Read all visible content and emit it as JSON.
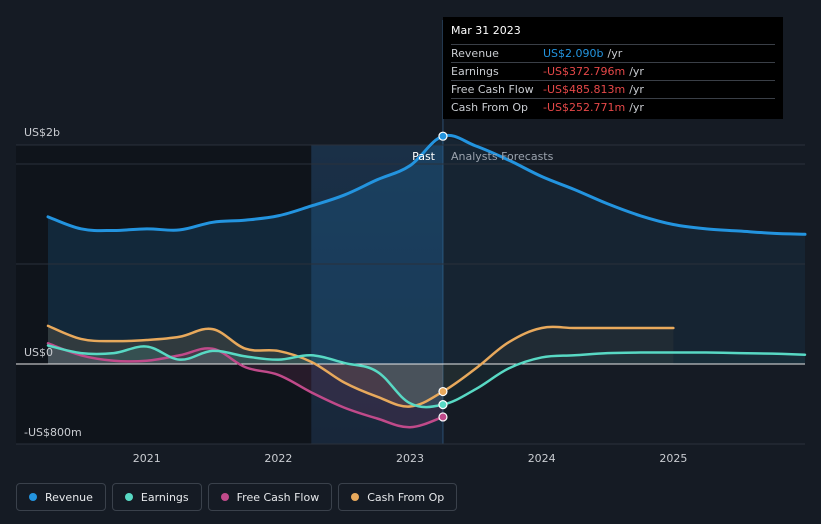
{
  "tooltip": {
    "date": "Mar 31 2023",
    "rows": [
      {
        "label": "Revenue",
        "value": "US$2.090b",
        "unit": "/yr",
        "color": "#2394df"
      },
      {
        "label": "Earnings",
        "value": "-US$372.796m",
        "unit": "/yr",
        "color": "#e64848"
      },
      {
        "label": "Free Cash Flow",
        "value": "-US$485.813m",
        "unit": "/yr",
        "color": "#e64848"
      },
      {
        "label": "Cash From Op",
        "value": "-US$252.771m",
        "unit": "/yr",
        "color": "#e64848"
      }
    ]
  },
  "markers": {
    "past": "Past",
    "forecast": "Analysts Forecasts"
  },
  "colors": {
    "background": "#151b24",
    "revenue": "#2394df",
    "earnings": "#58d9c4",
    "fcf": "#c04a8a",
    "cfo": "#e8a95c"
  },
  "legend": [
    {
      "label": "Revenue",
      "color": "#2394df"
    },
    {
      "label": "Earnings",
      "color": "#58d9c4"
    },
    {
      "label": "Free Cash Flow",
      "color": "#c04a8a"
    },
    {
      "label": "Cash From Op",
      "color": "#e8a95c"
    }
  ],
  "chart_data": {
    "type": "line",
    "title": "",
    "xlabel": "",
    "ylabel": "",
    "ylim": [
      -800,
      2000
    ],
    "xlim": [
      2020.25,
      2026.0
    ],
    "y_tick_labels": [
      {
        "value": 2000,
        "label": "US$2b"
      },
      {
        "value": 0,
        "label": "US$0"
      },
      {
        "value": -800,
        "label": "-US$800m"
      }
    ],
    "x_ticks": [
      {
        "value": 2021,
        "label": "2021"
      },
      {
        "value": 2022,
        "label": "2022"
      },
      {
        "value": 2023,
        "label": "2023"
      },
      {
        "value": 2024,
        "label": "2024"
      },
      {
        "value": 2025,
        "label": "2025"
      }
    ],
    "past_boundary": 2023.25,
    "highlight_start": 2022.25,
    "series": [
      {
        "name": "Revenue",
        "x": [
          2020.25,
          2020.5,
          2020.75,
          2021.0,
          2021.25,
          2021.5,
          2021.75,
          2022.0,
          2022.25,
          2022.5,
          2022.75,
          2023.0,
          2023.25,
          2023.5,
          2023.75,
          2024.0,
          2024.25,
          2024.5,
          2024.75,
          2025.0,
          2025.25,
          2025.5,
          2025.75,
          2026.0
        ],
        "values": [
          1350,
          1240,
          1225,
          1240,
          1230,
          1300,
          1320,
          1360,
          1450,
          1550,
          1690,
          1820,
          2090,
          2000,
          1870,
          1720,
          1600,
          1470,
          1360,
          1280,
          1240,
          1220,
          1200,
          1190
        ]
      },
      {
        "name": "Earnings",
        "x": [
          2020.25,
          2020.5,
          2020.75,
          2021.0,
          2021.25,
          2021.5,
          2021.75,
          2022.0,
          2022.25,
          2022.5,
          2022.75,
          2023.0,
          2023.25,
          2023.5,
          2023.75,
          2024.0,
          2024.25,
          2024.5,
          2024.75,
          2025.0,
          2025.25,
          2025.5,
          2025.75,
          2026.0
        ],
        "values": [
          170,
          100,
          100,
          160,
          40,
          120,
          70,
          40,
          80,
          10,
          -70,
          -360,
          -372.8,
          -230,
          -40,
          60,
          80,
          100,
          105,
          105,
          105,
          100,
          95,
          85
        ]
      },
      {
        "name": "Free Cash Flow",
        "x": [
          2020.25,
          2020.5,
          2020.75,
          2021.0,
          2021.25,
          2021.5,
          2021.75,
          2022.0,
          2022.25,
          2022.5,
          2022.75,
          2023.0,
          2023.25
        ],
        "values": [
          190,
          80,
          30,
          30,
          80,
          140,
          -30,
          -100,
          -260,
          -400,
          -500,
          -580,
          -485.8
        ]
      },
      {
        "name": "Cash From Op",
        "x": [
          2020.25,
          2020.5,
          2020.75,
          2021.0,
          2021.25,
          2021.5,
          2021.75,
          2022.0,
          2022.25,
          2022.5,
          2022.75,
          2023.0,
          2023.25,
          2023.5,
          2023.75,
          2024.0,
          2024.25,
          2024.5,
          2024.75,
          2025.0
        ],
        "values": [
          350,
          230,
          210,
          220,
          250,
          320,
          140,
          120,
          20,
          -170,
          -300,
          -390,
          -252.8,
          -40,
          200,
          330,
          330,
          330,
          330,
          330
        ]
      }
    ]
  }
}
